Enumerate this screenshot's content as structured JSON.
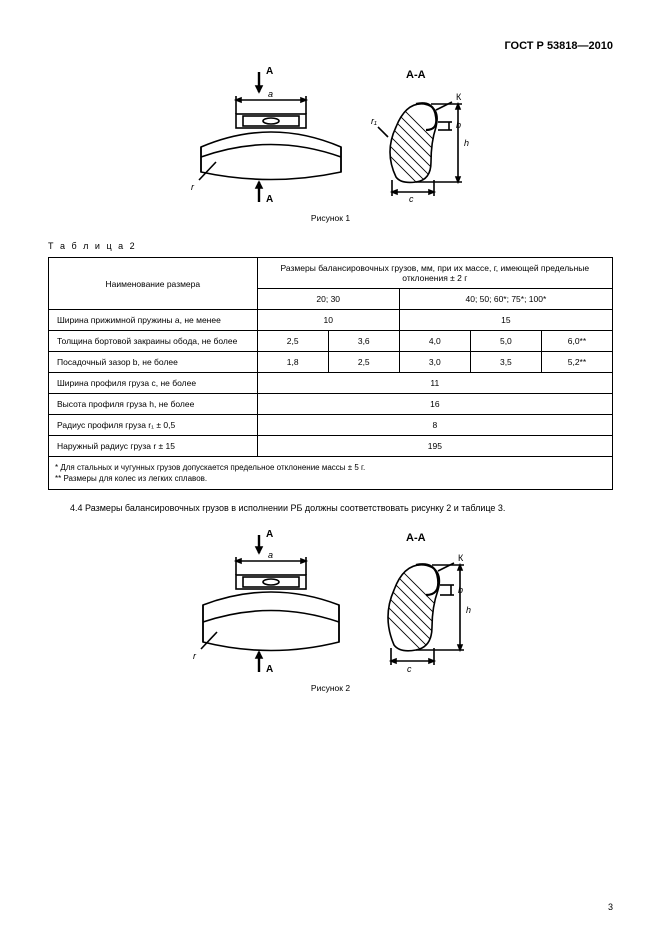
{
  "standard_code": "ГОСТ Р 53818—2010",
  "figure1": {
    "caption": "Рисунок 1",
    "section_label": "А-А",
    "letters": {
      "A_top": "А",
      "A_bottom": "А",
      "K": "К",
      "a": "a",
      "b": "b",
      "c": "c",
      "h": "h",
      "r": "r",
      "r1": "r₁"
    }
  },
  "table2": {
    "label": "Т а б л и ц а   2",
    "col_name_header": "Наименование размера",
    "col_group_header": "Размеры балансировочных грузов, мм, при их массе, г, имеющей предельные отклонения ± 2 г",
    "mass_groups": [
      "20; 30",
      "40; 50; 60*; 75*; 100*"
    ],
    "rows": [
      {
        "label": "Ширина прижимной пружины a, не менее",
        "cells": [
          "10",
          "15"
        ],
        "spans": [
          2,
          3
        ]
      },
      {
        "label": "Толщина бортовой закраины обода, не более",
        "cells": [
          "2,5",
          "3,6",
          "4,0",
          "5,0",
          "6,0**"
        ],
        "spans": [
          1,
          1,
          1,
          1,
          1
        ]
      },
      {
        "label": "Посадочный зазор b, не более",
        "cells": [
          "1,8",
          "2,5",
          "3,0",
          "3,5",
          "5,2**"
        ],
        "spans": [
          1,
          1,
          1,
          1,
          1
        ]
      },
      {
        "label": "Ширина профиля груза c, не более",
        "cells": [
          "11"
        ],
        "spans": [
          5
        ]
      },
      {
        "label": "Высота профиля груза h, не более",
        "cells": [
          "16"
        ],
        "spans": [
          5
        ]
      },
      {
        "label": "Радиус профиля груза r₁ ± 0,5",
        "cells": [
          "8"
        ],
        "spans": [
          5
        ]
      },
      {
        "label": "Наружный радиус груза r ± 15",
        "cells": [
          "195"
        ],
        "spans": [
          5
        ]
      }
    ],
    "footnotes": [
      "*  Для стальных и чугунных грузов допускается предельное отклонение массы ± 5 г.",
      "**  Размеры для колес из легких сплавов."
    ]
  },
  "paragraph_44": "4.4  Размеры балансировочных грузов в исполнении РБ должны соответствовать рисунку 2 и таблице 3.",
  "figure2": {
    "caption": "Рисунок 2",
    "section_label": "А-А",
    "letters": {
      "A_top": "А",
      "A_bottom": "А",
      "K": "К",
      "a": "a",
      "b": "b",
      "c": "c",
      "h": "h",
      "r": "r"
    }
  },
  "page_number": "3",
  "colors": {
    "line": "#000000",
    "hatch": "#000000",
    "bg": "#ffffff"
  }
}
